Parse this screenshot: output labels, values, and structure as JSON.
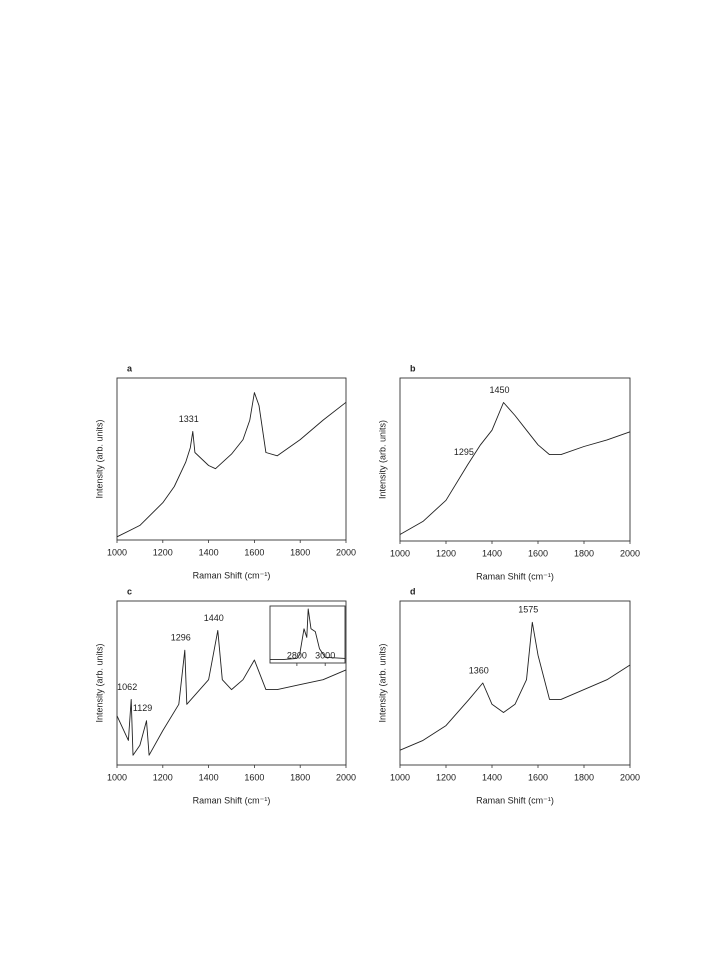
{
  "chart_data": [
    {
      "type": "line",
      "panel": "a",
      "xlabel": "Raman Shift (cm⁻¹)",
      "ylabel": "Intensity (arb. units)",
      "xlim": [
        1000,
        2000
      ],
      "xticks": [
        1000,
        1200,
        1400,
        1600,
        1800,
        2000
      ],
      "ylim": [
        0,
        100
      ],
      "x": [
        1000,
        1100,
        1200,
        1250,
        1300,
        1320,
        1331,
        1340,
        1400,
        1430,
        1500,
        1550,
        1580,
        1600,
        1620,
        1650,
        1700,
        1800,
        1900,
        2000
      ],
      "values": [
        2,
        9,
        23,
        33,
        48,
        57,
        67,
        54,
        46,
        44,
        53,
        62,
        74,
        91,
        83,
        54,
        52,
        62,
        74,
        85
      ],
      "peaks": [
        1331
      ]
    },
    {
      "type": "line",
      "panel": "b",
      "xlabel": "Raman Shift (cm⁻¹)",
      "ylabel": "Intensity (arb. units)",
      "xlim": [
        1000,
        2000
      ],
      "xticks": [
        1000,
        1200,
        1400,
        1600,
        1800,
        2000
      ],
      "ylim": [
        0,
        100
      ],
      "x": [
        1000,
        1100,
        1200,
        1295,
        1350,
        1400,
        1450,
        1500,
        1550,
        1600,
        1650,
        1700,
        1800,
        1900,
        2000
      ],
      "values": [
        4,
        12,
        25,
        47,
        59,
        68,
        85,
        77,
        68,
        59,
        53,
        53,
        58,
        62,
        67
      ],
      "peaks": [
        1295,
        1450
      ]
    },
    {
      "type": "line",
      "panel": "c",
      "xlabel": "Raman Shift (cm⁻¹)",
      "ylabel": "Intensity (arb. units)",
      "xlim": [
        1000,
        2000
      ],
      "xticks": [
        1000,
        1200,
        1400,
        1600,
        1800,
        2000
      ],
      "ylim": [
        0,
        100
      ],
      "x": [
        1000,
        1050,
        1062,
        1070,
        1100,
        1129,
        1140,
        1200,
        1270,
        1296,
        1305,
        1400,
        1440,
        1460,
        1500,
        1550,
        1600,
        1650,
        1700,
        1800,
        1900,
        2000
      ],
      "values": [
        30,
        15,
        40,
        6,
        12,
        27,
        6,
        21,
        37,
        70,
        37,
        52,
        82,
        52,
        46,
        52,
        64,
        46,
        46,
        49,
        52,
        58
      ],
      "peaks": [
        1062,
        1129,
        1296,
        1440
      ],
      "inset": {
        "xlim": [
          2610,
          3140
        ],
        "xticks": [
          2800,
          3000
        ],
        "ylim": [
          0,
          100
        ],
        "x": [
          2610,
          2700,
          2800,
          2820,
          2850,
          2870,
          2880,
          2900,
          2930,
          2960,
          3000,
          3140
        ],
        "values": [
          6,
          6,
          8,
          15,
          60,
          45,
          95,
          60,
          55,
          25,
          10,
          8
        ]
      }
    },
    {
      "type": "line",
      "panel": "d",
      "xlabel": "Raman Shift (cm⁻¹)",
      "ylabel": "Intensity (arb. units)",
      "xlim": [
        1000,
        2000
      ],
      "xticks": [
        1000,
        1200,
        1400,
        1600,
        1800,
        2000
      ],
      "ylim": [
        0,
        100
      ],
      "x": [
        1000,
        1100,
        1200,
        1300,
        1360,
        1400,
        1450,
        1500,
        1550,
        1575,
        1600,
        1650,
        1700,
        1800,
        1900,
        2000
      ],
      "values": [
        9,
        15,
        24,
        40,
        50,
        37,
        32,
        37,
        52,
        87,
        67,
        40,
        40,
        46,
        52,
        61
      ],
      "peaks": [
        1360,
        1575
      ]
    }
  ]
}
